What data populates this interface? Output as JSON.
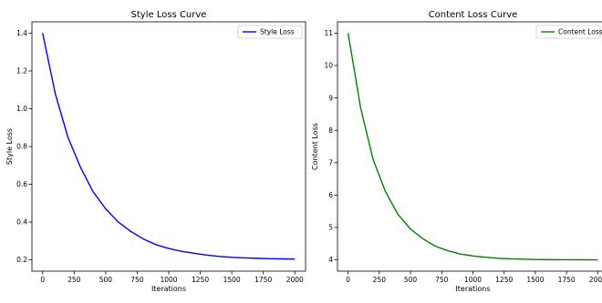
{
  "chart_data": [
    {
      "type": "line",
      "title": "Style Loss Curve",
      "xlabel": "Iterations",
      "ylabel": "Style Loss",
      "xlim": [
        -85,
        2085
      ],
      "ylim": [
        0.14,
        1.46
      ],
      "xticks": [
        0,
        250,
        500,
        750,
        1000,
        1250,
        1500,
        1750,
        2000
      ],
      "yticks": [
        0.2,
        0.4,
        0.6,
        0.8,
        1.0,
        1.2,
        1.4
      ],
      "ytick_labels": [
        "0.2",
        "0.4",
        "0.6",
        "0.8",
        "1.0",
        "1.2",
        "1.4"
      ],
      "grid": false,
      "legend": "top-right",
      "series": [
        {
          "name": "Style Loss",
          "color": "#0000ff",
          "x": [
            0,
            100,
            200,
            300,
            400,
            500,
            600,
            700,
            800,
            900,
            1000,
            1100,
            1200,
            1300,
            1400,
            1500,
            1600,
            1700,
            1800,
            1900,
            2000
          ],
          "y": [
            1.4,
            1.08,
            0.85,
            0.69,
            0.56,
            0.47,
            0.4,
            0.35,
            0.31,
            0.28,
            0.26,
            0.245,
            0.235,
            0.225,
            0.218,
            0.213,
            0.21,
            0.208,
            0.206,
            0.205,
            0.204
          ]
        }
      ]
    },
    {
      "type": "line",
      "title": "Content Loss Curve",
      "xlabel": "Iterations",
      "ylabel": "Content Loss",
      "xlim": [
        -85,
        2085
      ],
      "ylim": [
        3.65,
        11.35
      ],
      "xticks": [
        0,
        250,
        500,
        750,
        1000,
        1250,
        1500,
        1750,
        2000
      ],
      "yticks": [
        4,
        5,
        6,
        7,
        8,
        9,
        10,
        11
      ],
      "ytick_labels": [
        "4",
        "5",
        "6",
        "7",
        "8",
        "9",
        "10",
        "11"
      ],
      "grid": false,
      "legend": "top-right",
      "series": [
        {
          "name": "Content Loss",
          "color": "#008000",
          "x": [
            0,
            100,
            200,
            300,
            400,
            500,
            600,
            700,
            800,
            900,
            1000,
            1100,
            1200,
            1300,
            1400,
            1500,
            1600,
            1700,
            1800,
            1900,
            2000
          ],
          "y": [
            11.0,
            8.7,
            7.1,
            6.1,
            5.4,
            4.95,
            4.65,
            4.42,
            4.28,
            4.18,
            4.12,
            4.08,
            4.05,
            4.03,
            4.02,
            4.01,
            4.005,
            4.003,
            4.002,
            4.001,
            4.0
          ]
        }
      ]
    }
  ]
}
